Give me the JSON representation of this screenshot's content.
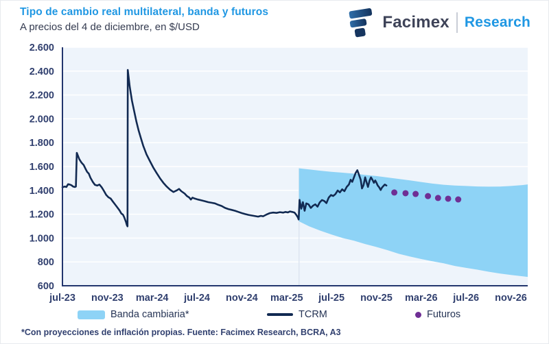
{
  "header": {
    "title": "Tipo de cambio real multilateral, banda y futuros",
    "subtitle": "A precios del 4 de diciembre, en $/USD"
  },
  "logo": {
    "brand": "Facimex",
    "division": "Research"
  },
  "legend": {
    "items": [
      {
        "key": "banda",
        "label": "Banda cambiaria*"
      },
      {
        "key": "tcrm",
        "label": "TCRM"
      },
      {
        "key": "futuros",
        "label": "Futuros"
      }
    ]
  },
  "footnote": "*Con proyecciones de inflación propias. Fuente: Facimex Research, BCRA, A3",
  "colors": {
    "title_blue": "#1f97e3",
    "text_navy": "#31406f",
    "line_navy": "#122a52",
    "band_blue": "#8ed3f6",
    "dot_purple": "#6f2f95",
    "plot_bg": "#eef4fb",
    "gridline": "#ffffff",
    "axis": "#22356d",
    "band_start_vline": "#dce5f1"
  },
  "chart_data": {
    "type": "composite",
    "title": "Tipo de cambio real multilateral, banda y futuros",
    "subtitle": "A precios del 4 de diciembre, en $/USD",
    "x_unit": "months since jul-23",
    "x_range": [
      0,
      41.5
    ],
    "y_range": [
      600,
      2600
    ],
    "grid": "horizontal",
    "legend_position": "bottom",
    "x_ticks": [
      {
        "m": 0,
        "label": "jul-23"
      },
      {
        "m": 4,
        "label": "nov-23"
      },
      {
        "m": 8,
        "label": "mar-24"
      },
      {
        "m": 12,
        "label": "jul-24"
      },
      {
        "m": 16,
        "label": "nov-24"
      },
      {
        "m": 20,
        "label": "mar-25"
      },
      {
        "m": 24,
        "label": "jul-25"
      },
      {
        "m": 28,
        "label": "nov-25"
      },
      {
        "m": 32,
        "label": "mar-26"
      },
      {
        "m": 36,
        "label": "jul-26"
      },
      {
        "m": 40,
        "label": "nov-26"
      }
    ],
    "y_ticks": [
      {
        "v": 600,
        "label": "600"
      },
      {
        "v": 800,
        "label": "800"
      },
      {
        "v": 1000,
        "label": "1.000"
      },
      {
        "v": 1200,
        "label": "1.200"
      },
      {
        "v": 1400,
        "label": "1.400"
      },
      {
        "v": 1600,
        "label": "1.600"
      },
      {
        "v": 1800,
        "label": "1.800"
      },
      {
        "v": 2000,
        "label": "2.000"
      },
      {
        "v": 2200,
        "label": "2.200"
      },
      {
        "v": 2400,
        "label": "2.400"
      },
      {
        "v": 2600,
        "label": "2.600"
      }
    ],
    "band": {
      "name": "Banda cambiaria*",
      "upper": [
        [
          21.1,
          1585
        ],
        [
          22,
          1575
        ],
        [
          23,
          1565
        ],
        [
          24,
          1556
        ],
        [
          25,
          1548
        ],
        [
          26,
          1540
        ],
        [
          27,
          1530
        ],
        [
          28,
          1520
        ],
        [
          29,
          1508
        ],
        [
          30,
          1496
        ],
        [
          31,
          1484
        ],
        [
          32,
          1470
        ],
        [
          33,
          1457
        ],
        [
          34,
          1447
        ],
        [
          35,
          1441
        ],
        [
          36,
          1437
        ],
        [
          37,
          1433
        ],
        [
          38,
          1431
        ],
        [
          39,
          1432
        ],
        [
          40,
          1437
        ],
        [
          41,
          1444
        ],
        [
          41.5,
          1450
        ]
      ],
      "lower": [
        [
          21.1,
          1140
        ],
        [
          22,
          1098
        ],
        [
          23,
          1062
        ],
        [
          24,
          1030
        ],
        [
          25,
          1000
        ],
        [
          26,
          978
        ],
        [
          27,
          950
        ],
        [
          28,
          925
        ],
        [
          29,
          898
        ],
        [
          30,
          868
        ],
        [
          31,
          845
        ],
        [
          32,
          824
        ],
        [
          33,
          806
        ],
        [
          34,
          788
        ],
        [
          35,
          766
        ],
        [
          36,
          750
        ],
        [
          37,
          735
        ],
        [
          38,
          718
        ],
        [
          39,
          703
        ],
        [
          40,
          690
        ],
        [
          41,
          680
        ],
        [
          41.5,
          674
        ]
      ]
    },
    "tcrm": {
      "name": "TCRM",
      "points": [
        [
          0,
          1425
        ],
        [
          0.2,
          1432
        ],
        [
          0.35,
          1428
        ],
        [
          0.5,
          1452
        ],
        [
          0.65,
          1449
        ],
        [
          0.8,
          1443
        ],
        [
          0.95,
          1432
        ],
        [
          1.1,
          1428
        ],
        [
          1.2,
          1432
        ],
        [
          1.28,
          1715
        ],
        [
          1.5,
          1662
        ],
        [
          1.7,
          1632
        ],
        [
          1.9,
          1612
        ],
        [
          2.05,
          1582
        ],
        [
          2.2,
          1556
        ],
        [
          2.35,
          1540
        ],
        [
          2.5,
          1506
        ],
        [
          2.7,
          1472
        ],
        [
          2.9,
          1446
        ],
        [
          3.1,
          1440
        ],
        [
          3.3,
          1449
        ],
        [
          3.5,
          1426
        ],
        [
          3.7,
          1396
        ],
        [
          3.9,
          1362
        ],
        [
          4.1,
          1342
        ],
        [
          4.3,
          1331
        ],
        [
          4.5,
          1306
        ],
        [
          4.7,
          1281
        ],
        [
          4.9,
          1256
        ],
        [
          5.1,
          1231
        ],
        [
          5.25,
          1206
        ],
        [
          5.4,
          1196
        ],
        [
          5.5,
          1176
        ],
        [
          5.6,
          1151
        ],
        [
          5.68,
          1131
        ],
        [
          5.74,
          1110
        ],
        [
          5.8,
          1098
        ],
        [
          5.83,
          2410
        ],
        [
          6,
          2272
        ],
        [
          6.2,
          2152
        ],
        [
          6.4,
          2062
        ],
        [
          6.6,
          1976
        ],
        [
          6.8,
          1900
        ],
        [
          7,
          1836
        ],
        [
          7.2,
          1776
        ],
        [
          7.5,
          1702
        ],
        [
          7.8,
          1646
        ],
        [
          8.1,
          1592
        ],
        [
          8.4,
          1546
        ],
        [
          8.7,
          1502
        ],
        [
          9,
          1464
        ],
        [
          9.3,
          1432
        ],
        [
          9.6,
          1406
        ],
        [
          9.9,
          1386
        ],
        [
          10.2,
          1400
        ],
        [
          10.4,
          1412
        ],
        [
          10.6,
          1393
        ],
        [
          10.9,
          1373
        ],
        [
          11.1,
          1353
        ],
        [
          11.3,
          1341
        ],
        [
          11.45,
          1323
        ],
        [
          11.6,
          1339
        ],
        [
          11.8,
          1331
        ],
        [
          12.1,
          1323
        ],
        [
          12.4,
          1316
        ],
        [
          12.7,
          1309
        ],
        [
          13,
          1301
        ],
        [
          13.3,
          1296
        ],
        [
          13.6,
          1291
        ],
        [
          13.9,
          1279
        ],
        [
          14.2,
          1269
        ],
        [
          14.5,
          1253
        ],
        [
          14.8,
          1243
        ],
        [
          15.1,
          1236
        ],
        [
          15.4,
          1229
        ],
        [
          15.7,
          1219
        ],
        [
          16,
          1209
        ],
        [
          16.3,
          1201
        ],
        [
          16.6,
          1194
        ],
        [
          16.9,
          1189
        ],
        [
          17.2,
          1184
        ],
        [
          17.45,
          1180
        ],
        [
          17.7,
          1186
        ],
        [
          17.9,
          1183
        ],
        [
          18.2,
          1197
        ],
        [
          18.5,
          1209
        ],
        [
          18.8,
          1214
        ],
        [
          19.1,
          1211
        ],
        [
          19.4,
          1217
        ],
        [
          19.7,
          1213
        ],
        [
          19.9,
          1219
        ],
        [
          20.1,
          1215
        ],
        [
          20.3,
          1223
        ],
        [
          20.5,
          1219
        ],
        [
          20.7,
          1213
        ],
        [
          20.85,
          1196
        ],
        [
          21,
          1173
        ],
        [
          21.07,
          1156
        ],
        [
          21.15,
          1320
        ],
        [
          21.3,
          1246
        ],
        [
          21.45,
          1301
        ],
        [
          21.6,
          1229
        ],
        [
          21.75,
          1291
        ],
        [
          21.95,
          1283
        ],
        [
          22.15,
          1253
        ],
        [
          22.35,
          1271
        ],
        [
          22.55,
          1283
        ],
        [
          22.75,
          1263
        ],
        [
          22.95,
          1299
        ],
        [
          23.15,
          1319
        ],
        [
          23.35,
          1311
        ],
        [
          23.55,
          1293
        ],
        [
          23.75,
          1339
        ],
        [
          23.95,
          1361
        ],
        [
          24.15,
          1353
        ],
        [
          24.35,
          1369
        ],
        [
          24.55,
          1399
        ],
        [
          24.75,
          1383
        ],
        [
          24.95,
          1409
        ],
        [
          25.15,
          1393
        ],
        [
          25.35,
          1429
        ],
        [
          25.55,
          1449
        ],
        [
          25.7,
          1489
        ],
        [
          25.85,
          1471
        ],
        [
          26,
          1509
        ],
        [
          26.15,
          1546
        ],
        [
          26.3,
          1569
        ],
        [
          26.45,
          1531
        ],
        [
          26.6,
          1489
        ],
        [
          26.72,
          1416
        ],
        [
          26.85,
          1443
        ],
        [
          27,
          1509
        ],
        [
          27.12,
          1469
        ],
        [
          27.25,
          1429
        ],
        [
          27.4,
          1483
        ],
        [
          27.52,
          1509
        ],
        [
          27.65,
          1489
        ],
        [
          27.78,
          1463
        ],
        [
          27.9,
          1483
        ],
        [
          28,
          1466
        ],
        [
          28.12,
          1441
        ],
        [
          28.25,
          1426
        ],
        [
          28.38,
          1403
        ],
        [
          28.5,
          1423
        ],
        [
          28.62,
          1436
        ],
        [
          28.75,
          1449
        ],
        [
          28.9,
          1441
        ]
      ]
    },
    "futuros": {
      "name": "Futuros",
      "points": [
        [
          29.6,
          1382
        ],
        [
          30.6,
          1376
        ],
        [
          31.5,
          1370
        ],
        [
          32.6,
          1352
        ],
        [
          33.5,
          1336
        ],
        [
          34.4,
          1330
        ],
        [
          35.3,
          1324
        ]
      ]
    }
  }
}
